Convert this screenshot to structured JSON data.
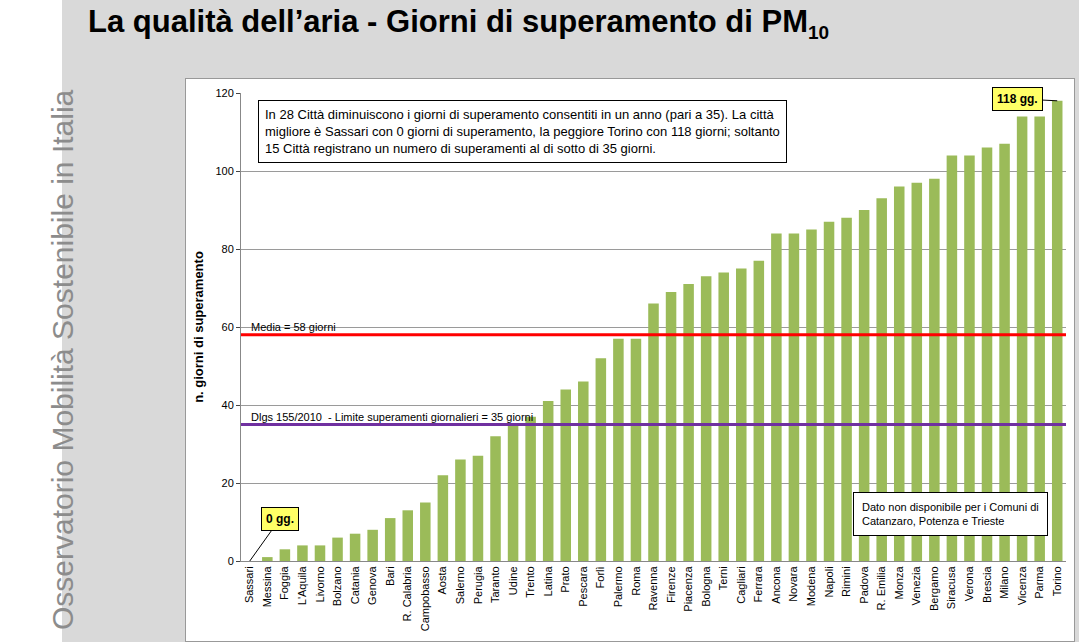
{
  "chart_data": {
    "type": "bar",
    "title": {
      "text": "La qualità dell’aria - Giorni di superamento di PM",
      "subscript": "10"
    },
    "branding": "Osservatorio Mobilità Sostenibile in Italia",
    "y_label": "n. giorni di superamento",
    "categories": [
      "Sassari",
      "Messina",
      "Foggia",
      "L'Aquila",
      "Livorno",
      "Bolzano",
      "Catania",
      "Genova",
      "Bari",
      "R. Calabria",
      "Campobasso",
      "Aosta",
      "Salerno",
      "Perugia",
      "Taranto",
      "Udine",
      "Trento",
      "Latina",
      "Prato",
      "Pescara",
      "Forlì",
      "Palermo",
      "Roma",
      "Ravenna",
      "Firenze",
      "Piacenza",
      "Bologna",
      "Terni",
      "Cagliari",
      "Ferrara",
      "Ancona",
      "Novara",
      "Modena",
      "Napoli",
      "Rimini",
      "Padova",
      "R. Emilia",
      "Monza",
      "Venezia",
      "Bergamo",
      "Siracusa",
      "Verona",
      "Brescia",
      "Milano",
      "Vicenza",
      "Parma",
      "Torino"
    ],
    "values": [
      0,
      1,
      3,
      4,
      4,
      6,
      7,
      8,
      11,
      13,
      15,
      22,
      26,
      27,
      32,
      35,
      37,
      41,
      44,
      46,
      52,
      57,
      57,
      66,
      69,
      71,
      73,
      74,
      75,
      77,
      84,
      84,
      85,
      87,
      88,
      90,
      93,
      96,
      97,
      98,
      104,
      104,
      106,
      107,
      114,
      114,
      118
    ],
    "color": "#9bbb59",
    "ylim": [
      0,
      120
    ],
    "yticks": [
      0,
      20,
      40,
      60,
      80,
      100,
      120
    ],
    "grid": true,
    "data_labels": false,
    "reference_lines": [
      {
        "value": 58,
        "label": "Media = 58 giorni",
        "color": "#ff0000"
      },
      {
        "value": 35,
        "label": "Dlgs 155/2010  - Limite superamenti giornalieri = 35 giorni",
        "color": "#7030a0"
      }
    ],
    "annotations": [
      {
        "kind": "box",
        "lines": [
          "In 28 Città diminuiscono i giorni di superamento consentiti in un anno (pari a 35). La città",
          "migliore è Sassari con 0 giorni di superamento, la peggiore Torino con 118 giorni; soltanto",
          "15 Città registrano un numero di superamenti al di sotto di 35 giorni."
        ]
      },
      {
        "kind": "callout",
        "text": "118 gg.",
        "category": "Torino",
        "value": 118
      },
      {
        "kind": "callout",
        "text": "0 gg.",
        "category": "Sassari",
        "value": 0
      },
      {
        "kind": "note",
        "lines": [
          "Dato non disponibile per i Comuni di",
          "Catanzaro, Potenza e Trieste"
        ]
      }
    ]
  }
}
